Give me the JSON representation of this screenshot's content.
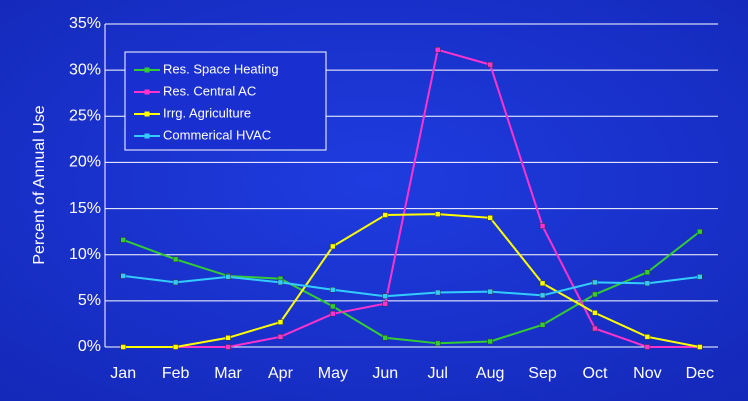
{
  "chart_data": {
    "type": "line",
    "y_label": "Percent of Annual Use",
    "categories": [
      "Jan",
      "Feb",
      "Mar",
      "Apr",
      "May",
      "Jun",
      "Jul",
      "Aug",
      "Sep",
      "Oct",
      "Nov",
      "Dec"
    ],
    "series": [
      {
        "name": "Res. Space Heating",
        "color": "#33cc33",
        "values": [
          11.6,
          9.5,
          7.7,
          7.4,
          4.4,
          1.0,
          0.4,
          0.6,
          2.4,
          5.7,
          8.1,
          12.5
        ]
      },
      {
        "name": "Res. Central AC",
        "color": "#ff33cc",
        "values": [
          0,
          0,
          0,
          1.1,
          3.6,
          4.7,
          32.2,
          30.6,
          13.1,
          2.0,
          0,
          0
        ]
      },
      {
        "name": "Irrg. Agriculture",
        "color": "#ffff00",
        "values": [
          0,
          0,
          1.0,
          2.7,
          10.9,
          14.3,
          14.4,
          14.0,
          6.9,
          3.7,
          1.1,
          0
        ]
      },
      {
        "name": "Commerical HVAC",
        "color": "#33ccff",
        "values": [
          7.7,
          7.0,
          7.6,
          7.0,
          6.2,
          5.5,
          5.9,
          6.0,
          5.6,
          7.0,
          6.9,
          7.6
        ]
      }
    ],
    "ylim": [
      0,
      35
    ],
    "yticks": [
      {
        "value": 0,
        "label": "0%"
      },
      {
        "value": 5,
        "label": "5%"
      },
      {
        "value": 10,
        "label": "10%"
      },
      {
        "value": 15,
        "label": "15%"
      },
      {
        "value": 20,
        "label": "20%"
      },
      {
        "value": 25,
        "label": "25%"
      },
      {
        "value": 30,
        "label": "30%"
      },
      {
        "value": 35,
        "label": "35%"
      }
    ],
    "grid": true,
    "legend": "upper left"
  }
}
